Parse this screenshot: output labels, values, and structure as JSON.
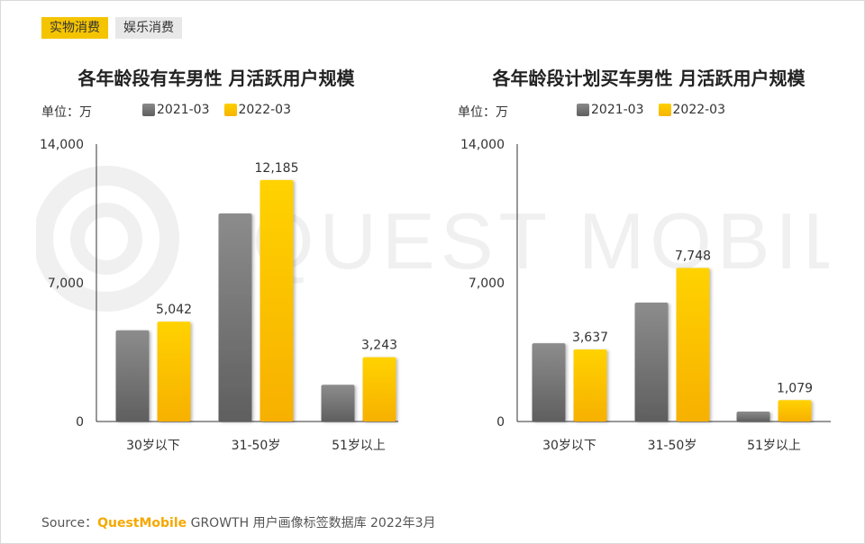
{
  "tabs": {
    "active": "实物消费",
    "inactive": "娱乐消费"
  },
  "watermark_text": "QUEST MOBILE",
  "colors": {
    "gray": "#6e6e6e",
    "gold": "#fbbf00",
    "axis": "#333333"
  },
  "legend": {
    "s1": "2021-03",
    "s2": "2022-03"
  },
  "unit_label": "单位：万",
  "chart_data": [
    {
      "type": "bar",
      "title": "各年龄段有车男性 月活跃用户规模",
      "categories": [
        "30岁以下",
        "31-50岁",
        "51岁以上"
      ],
      "series": [
        {
          "name": "2021-03",
          "values": [
            4600,
            10500,
            1850
          ]
        },
        {
          "name": "2022-03",
          "values": [
            5042,
            12185,
            3243
          ]
        }
      ],
      "data_labels": [
        "5,042",
        "12,185",
        "3,243"
      ],
      "yticks": [
        "0",
        "7,000",
        "14,000"
      ],
      "ylim": [
        0,
        14000
      ]
    },
    {
      "type": "bar",
      "title": "各年龄段计划买车男性 月活跃用户规模",
      "categories": [
        "30岁以下",
        "31-50岁",
        "51岁以上"
      ],
      "series": [
        {
          "name": "2021-03",
          "values": [
            3950,
            6000,
            500
          ]
        },
        {
          "name": "2022-03",
          "values": [
            3637,
            7748,
            1079
          ]
        }
      ],
      "data_labels": [
        "3,637",
        "7,748",
        "1,079"
      ],
      "yticks": [
        "0",
        "7,000",
        "14,000"
      ],
      "ylim": [
        0,
        14000
      ]
    }
  ],
  "source": {
    "prefix": "Source：",
    "brand": "QuestMobile",
    "rest": " GROWTH 用户画像标签数据库 2022年3月"
  }
}
